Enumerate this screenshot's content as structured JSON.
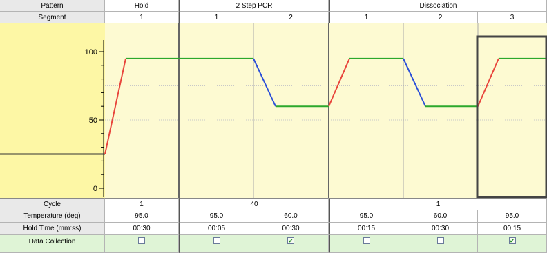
{
  "header": {
    "pattern_label": "Pattern",
    "segment_label": "Segment",
    "stages": [
      {
        "name": "Hold",
        "segments": [
          "1"
        ]
      },
      {
        "name": "2 Step PCR",
        "segments": [
          "1",
          "2"
        ]
      },
      {
        "name": "Dissociation",
        "segments": [
          "1",
          "2",
          "3"
        ]
      }
    ]
  },
  "plot": {
    "y_ticks": [
      "100",
      "50",
      "0"
    ],
    "y_range": [
      0,
      100
    ],
    "initial_temperature": 25,
    "segments": [
      {
        "temperature": 95.0
      },
      {
        "temperature": 95.0
      },
      {
        "temperature": 60.0
      },
      {
        "temperature": 95.0
      },
      {
        "temperature": 60.0
      },
      {
        "temperature": 95.0
      }
    ],
    "colors": {
      "ramp_up": "#e8453c",
      "ramp_down": "#2b4fd8",
      "hold": "#2ca82c"
    },
    "selected_segment": "Dissociation 3"
  },
  "rows": {
    "cycle": {
      "label": "Cycle",
      "values": [
        "1",
        "40",
        "1"
      ]
    },
    "temperature": {
      "label": "Temperature (deg)",
      "values": [
        "95.0",
        "95.0",
        "60.0",
        "95.0",
        "60.0",
        "95.0"
      ]
    },
    "hold_time": {
      "label": "Hold Time (mm:ss)",
      "values": [
        "00:30",
        "00:05",
        "00:30",
        "00:15",
        "00:30",
        "00:15"
      ]
    },
    "data_collection": {
      "label": "Data Collection",
      "values": [
        false,
        false,
        true,
        false,
        false,
        true
      ]
    }
  }
}
